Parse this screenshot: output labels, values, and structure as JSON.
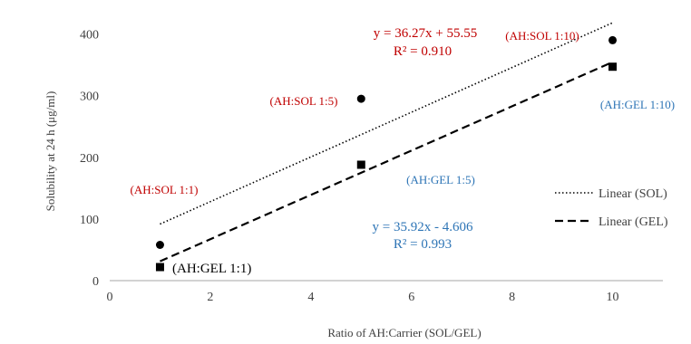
{
  "chart_data": {
    "type": "scatter",
    "title": "",
    "xlabel": "Ratio of AH:Carrier (SOL/GEL)",
    "ylabel": "Solubility at 24 h (μg/ml)",
    "xlim": [
      0,
      11
    ],
    "ylim": [
      0,
      420
    ],
    "x_ticks": [
      0,
      2,
      4,
      6,
      8,
      10
    ],
    "y_ticks": [
      0,
      100,
      200,
      300,
      400
    ],
    "grid": false,
    "legend_position": "right",
    "series": [
      {
        "id": "sol",
        "marker": "circle",
        "color": "#000000",
        "label_color": "#c00000",
        "points": [
          {
            "x": 1,
            "y": 58,
            "label": "(AH:SOL 1:1)"
          },
          {
            "x": 5,
            "y": 295,
            "label": "(AH:SOL 1:5)"
          },
          {
            "x": 10,
            "y": 390,
            "label": "(AH:SOL 1:10)"
          }
        ],
        "trendline": {
          "name": "Linear (SOL)",
          "style": "dotted",
          "slope": 36.27,
          "intercept": 55.55,
          "x_range": [
            1,
            10
          ],
          "equation": "y = 36.27x + 55.55",
          "r2": "R² = 0.910"
        }
      },
      {
        "id": "gel",
        "marker": "square",
        "color": "#000000",
        "label_color": "#2e75b6",
        "points": [
          {
            "x": 1,
            "y": 22,
            "label": "(AH:GEL 1:1)"
          },
          {
            "x": 5,
            "y": 188,
            "label": "(AH:GEL 1:5)"
          },
          {
            "x": 10,
            "y": 347,
            "label": "(AH:GEL 1:10)"
          }
        ],
        "trendline": {
          "name": "Linear (GEL)",
          "style": "dashed",
          "slope": 35.92,
          "intercept": -4.606,
          "x_range": [
            1,
            10
          ],
          "equation": "y = 35.92x - 4.606",
          "r2": "R² = 0.993"
        }
      }
    ],
    "colors": {
      "sol_text": "#c00000",
      "gel_text": "#2e75b6",
      "axis": "#a6a6a6"
    }
  }
}
